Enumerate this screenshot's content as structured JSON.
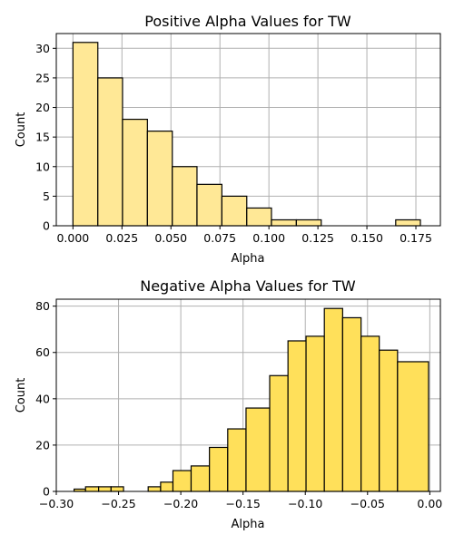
{
  "chart_data": [
    {
      "type": "bar",
      "title": "Positive Alpha Values for TW",
      "xlabel": "Alpha",
      "ylabel": "Count",
      "xlim": [
        -0.0085,
        0.1875
      ],
      "ylim": [
        0,
        32.5
      ],
      "xticks": [
        "0.000",
        "0.025",
        "0.050",
        "0.075",
        "0.100",
        "0.125",
        "0.150",
        "0.175"
      ],
      "xtick_values": [
        0,
        0.025,
        0.05,
        0.075,
        0.1,
        0.125,
        0.15,
        0.175
      ],
      "yticks": [
        "0",
        "5",
        "10",
        "15",
        "20",
        "25",
        "30"
      ],
      "ytick_values": [
        0,
        5,
        10,
        15,
        20,
        25,
        30
      ],
      "grid": true,
      "color": "#ffe896",
      "bins": [
        {
          "x0": 0.0,
          "x1": 0.0127,
          "count": 31
        },
        {
          "x0": 0.0127,
          "x1": 0.0253,
          "count": 25
        },
        {
          "x0": 0.0253,
          "x1": 0.038,
          "count": 18
        },
        {
          "x0": 0.038,
          "x1": 0.0507,
          "count": 16
        },
        {
          "x0": 0.0507,
          "x1": 0.0633,
          "count": 10
        },
        {
          "x0": 0.0633,
          "x1": 0.076,
          "count": 7
        },
        {
          "x0": 0.076,
          "x1": 0.0887,
          "count": 5
        },
        {
          "x0": 0.0887,
          "x1": 0.1013,
          "count": 3
        },
        {
          "x0": 0.1013,
          "x1": 0.114,
          "count": 1
        },
        {
          "x0": 0.114,
          "x1": 0.1267,
          "count": 1
        },
        {
          "x0": 0.1267,
          "x1": 0.1393,
          "count": 0
        },
        {
          "x0": 0.1393,
          "x1": 0.152,
          "count": 0
        },
        {
          "x0": 0.152,
          "x1": 0.1647,
          "count": 0
        },
        {
          "x0": 0.1647,
          "x1": 0.1773,
          "count": 1
        }
      ]
    },
    {
      "type": "bar",
      "title": "Negative Alpha Values for TW",
      "xlabel": "Alpha",
      "ylabel": "Count",
      "xlim": [
        -0.3,
        0.0085
      ],
      "ylim": [
        0,
        83
      ],
      "xticks": [
        "−0.30",
        "−0.25",
        "−0.20",
        "−0.15",
        "−0.10",
        "−0.05",
        "0.00"
      ],
      "xtick_values": [
        -0.3,
        -0.25,
        -0.2,
        -0.15,
        -0.1,
        -0.05,
        0.0
      ],
      "yticks": [
        "0",
        "20",
        "40",
        "60",
        "80"
      ],
      "ytick_values": [
        0,
        20,
        40,
        60,
        80
      ],
      "grid": true,
      "color": "#ffe05a",
      "bins": [
        {
          "x0": -0.2857,
          "x1": -0.2765,
          "count": 1
        },
        {
          "x0": -0.2765,
          "x1": -0.266,
          "count": 2
        },
        {
          "x0": -0.266,
          "x1": -0.256,
          "count": 2
        },
        {
          "x0": -0.256,
          "x1": -0.246,
          "count": 2
        },
        {
          "x0": -0.246,
          "x1": -0.2361,
          "count": 0
        },
        {
          "x0": -0.2361,
          "x1": -0.2262,
          "count": 0
        },
        {
          "x0": -0.2262,
          "x1": -0.2162,
          "count": 2
        },
        {
          "x0": -0.2162,
          "x1": -0.2063,
          "count": 4
        },
        {
          "x0": -0.2063,
          "x1": -0.1917,
          "count": 9
        },
        {
          "x0": -0.1917,
          "x1": -0.177,
          "count": 11
        },
        {
          "x0": -0.177,
          "x1": -0.1623,
          "count": 19
        },
        {
          "x0": -0.1623,
          "x1": -0.1476,
          "count": 27
        },
        {
          "x0": -0.1476,
          "x1": -0.1286,
          "count": 36
        },
        {
          "x0": -0.1286,
          "x1": -0.1139,
          "count": 50
        },
        {
          "x0": -0.1139,
          "x1": -0.0994,
          "count": 65
        },
        {
          "x0": -0.0994,
          "x1": -0.0847,
          "count": 67
        },
        {
          "x0": -0.0847,
          "x1": -0.07,
          "count": 79
        },
        {
          "x0": -0.07,
          "x1": -0.0552,
          "count": 75
        },
        {
          "x0": -0.0552,
          "x1": -0.0406,
          "count": 67
        },
        {
          "x0": -0.0406,
          "x1": -0.0259,
          "count": 61
        },
        {
          "x0": -0.0259,
          "x1": -0.001,
          "count": 56
        }
      ]
    }
  ]
}
